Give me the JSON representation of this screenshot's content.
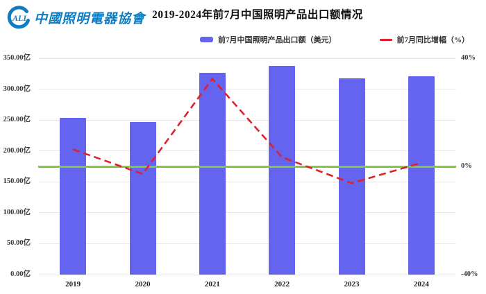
{
  "header": {
    "logo": {
      "org_abbr": "ALI",
      "org_name": "中國照明電器協會",
      "color": "#0f7dc2"
    },
    "title": "2019-2024年前7月中国照明产品出口额情况"
  },
  "legend": [
    {
      "label": "前7月中国照明产品出口额（美元）",
      "type": "bar",
      "color": "#6464ee"
    },
    {
      "label": "前7月同比增幅（%）",
      "type": "line",
      "color": "#e0212d"
    }
  ],
  "chart_data": {
    "type": "bar",
    "title": "2019-2024年前7月中国照明产品出口额情况",
    "categories": [
      "2019",
      "2020",
      "2021",
      "2022",
      "2023",
      "2024"
    ],
    "series": [
      {
        "name": "前7月中国照明产品出口额（美元）",
        "type": "bar",
        "axis": "left",
        "unit": "亿美元",
        "values": [
          254,
          247,
          327,
          338,
          317,
          321
        ],
        "color": "#6464ee"
      },
      {
        "name": "前7月同比增幅（%）",
        "type": "line",
        "axis": "right",
        "unit": "%",
        "dashed": true,
        "values": [
          6.3,
          -2.8,
          32.4,
          3.4,
          -6.2,
          1.3
        ],
        "color": "#e0212d"
      }
    ],
    "left_axis": {
      "min": 0,
      "max": 350,
      "tick_step": 50,
      "tick_labels": [
        "350.00亿",
        "300.00亿",
        "250.00亿",
        "200.00亿",
        "150.00亿",
        "100.00亿",
        "50.00亿",
        "0.00亿"
      ]
    },
    "right_axis": {
      "min": -40,
      "max": 40,
      "tick_values": [
        40,
        0,
        -40
      ],
      "tick_labels": [
        "40%",
        "0%",
        "-40%"
      ]
    },
    "zero_line": {
      "value": 0,
      "axis": "right",
      "color": "#82c740"
    },
    "grid": true,
    "grid_color": "#e7e7e7",
    "legend_position": "top"
  }
}
